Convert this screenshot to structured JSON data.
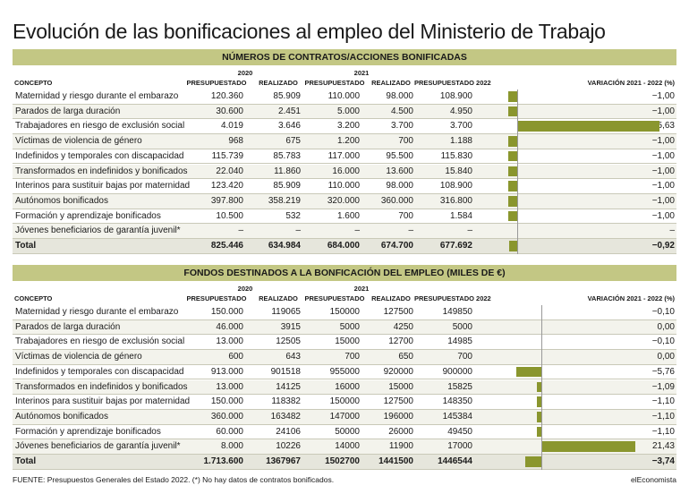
{
  "title": "Evolución de las bonificaciones al empleo del Ministerio de Trabajo",
  "headers": {
    "concept": "CONCEPTO",
    "years": [
      "2020",
      "2021"
    ],
    "columns": [
      "PRESUPUESTADO",
      "REALIZADO",
      "PRESUPUESTADO",
      "REALIZADO",
      "PRESUPUESTADO 2022"
    ],
    "variation": "VARIACIÓN 2021 - 2022 (%)"
  },
  "tables": [
    {
      "title": "NÚMEROS  DE CONTRATOS/ACCIONES BONIFICADAS",
      "rows": [
        {
          "concept": "Maternidad y riesgo durante el embarazo",
          "cells": [
            "120.360",
            "85.909",
            "110.000",
            "98.000",
            "108.900"
          ],
          "variation": {
            "value": -1,
            "label": "−1,00"
          }
        },
        {
          "concept": "Parados de larga duración",
          "cells": [
            "30.600",
            "2.451",
            "5.000",
            "4.500",
            "4.950"
          ],
          "variation": {
            "value": -1,
            "label": "−1,00"
          }
        },
        {
          "concept": "Trabajadores en riesgo de exclusión social",
          "cells": [
            "4.019",
            "3.646",
            "3.200",
            "3.700",
            "3.700"
          ],
          "variation": {
            "value": 15.63,
            "label": "15,63"
          }
        },
        {
          "concept": "Víctimas de violencia de género",
          "cells": [
            "968",
            "675",
            "1.200",
            "700",
            "1.188"
          ],
          "variation": {
            "value": -1,
            "label": "−1,00"
          }
        },
        {
          "concept": "Indefinidos y temporales con discapacidad",
          "cells": [
            "115.739",
            "85.783",
            "117.000",
            "95.500",
            "115.830"
          ],
          "variation": {
            "value": -1,
            "label": "−1,00"
          }
        },
        {
          "concept": "Transformados en indefinidos y bonificados",
          "cells": [
            "22.040",
            "11.860",
            "16.000",
            "13.600",
            "15.840"
          ],
          "variation": {
            "value": -1,
            "label": "−1,00"
          }
        },
        {
          "concept": "Interinos para sustituir bajas por maternidad",
          "cells": [
            "123.420",
            "85.909",
            "110.000",
            "98.000",
            "108.900"
          ],
          "variation": {
            "value": -1,
            "label": "−1,00"
          }
        },
        {
          "concept": "Autónomos bonificados",
          "cells": [
            "397.800",
            "358.219",
            "320.000",
            "360.000",
            "316.800"
          ],
          "variation": {
            "value": -1,
            "label": "−1,00"
          }
        },
        {
          "concept": "Formación y aprendizaje bonificados",
          "cells": [
            "10.500",
            "532",
            "1.600",
            "700",
            "1.584"
          ],
          "variation": {
            "value": -1,
            "label": "−1,00"
          }
        },
        {
          "concept": "Jóvenes beneficiarios de garantía juvenil*",
          "cells": [
            "–",
            "–",
            "–",
            "–",
            "–"
          ],
          "variation": "–"
        },
        {
          "concept": "Total",
          "cells": [
            "825.446",
            "634.984",
            "684.000",
            "674.700",
            "677.692"
          ],
          "variation": {
            "value": -0.92,
            "label": "−0,92"
          }
        }
      ]
    },
    {
      "title": "FONDOS DESTINADOS A LA BONFICACIÓN DEL EMPLEO (MILES DE €)",
      "rows": [
        {
          "concept": "Maternidad y riesgo durante el embarazo",
          "cells": [
            "150.000",
            "119065",
            "150000",
            "127500",
            "149850"
          ],
          "variation": {
            "value": -0.1,
            "label": "−0,10"
          }
        },
        {
          "concept": "Parados de larga duración",
          "cells": [
            "46.000",
            "3915",
            "5000",
            "4250",
            "5000"
          ],
          "variation": {
            "value": 0,
            "label": "0,00"
          }
        },
        {
          "concept": "Trabajadores en riesgo de exclusión social",
          "cells": [
            "13.000",
            "12505",
            "15000",
            "12700",
            "14985"
          ],
          "variation": {
            "value": -0.1,
            "label": "−0,10"
          }
        },
        {
          "concept": "Víctimas de violencia de género",
          "cells": [
            "600",
            "643",
            "700",
            "650",
            "700"
          ],
          "variation": {
            "value": 0,
            "label": "0,00"
          }
        },
        {
          "concept": "Indefinidos y temporales con discapacidad",
          "cells": [
            "913.000",
            "901518",
            "955000",
            "920000",
            "900000"
          ],
          "variation": {
            "value": -5.76,
            "label": "−5,76"
          }
        },
        {
          "concept": "Transformados en indefinidos y bonificados",
          "cells": [
            "13.000",
            "14125",
            "16000",
            "15000",
            "15825"
          ],
          "variation": {
            "value": -1.09,
            "label": "−1,09"
          }
        },
        {
          "concept": "Interinos para sustituir bajas por maternidad",
          "cells": [
            "150.000",
            "118382",
            "150000",
            "127500",
            "148350"
          ],
          "variation": {
            "value": -1.1,
            "label": "−1,10"
          }
        },
        {
          "concept": "Autónomos bonificados",
          "cells": [
            "360.000",
            "163482",
            "147000",
            "196000",
            "145384"
          ],
          "variation": {
            "value": -1.1,
            "label": "−1,10"
          }
        },
        {
          "concept": "Formación y aprendizaje bonificados",
          "cells": [
            "60.000",
            "24106",
            "50000",
            "26000",
            "49450"
          ],
          "variation": {
            "value": -1.1,
            "label": "−1,10"
          }
        },
        {
          "concept": "Jóvenes beneficiarios de garantía juvenil*",
          "cells": [
            "8.000",
            "10226",
            "14000",
            "11900",
            "17000"
          ],
          "variation": {
            "value": 21.43,
            "label": "21,43"
          }
        },
        {
          "concept": "Total",
          "cells": [
            "1.713.600",
            "1367967",
            "1502700",
            "1441500",
            "1446544"
          ],
          "variation": {
            "value": -3.74,
            "label": "−3,74"
          }
        }
      ]
    }
  ],
  "footer": {
    "source": "FUENTE: Presupuestos Generales del Estado 2022. (*) No hay datos de contratos bonificados.",
    "brand": "elEconomista"
  }
}
